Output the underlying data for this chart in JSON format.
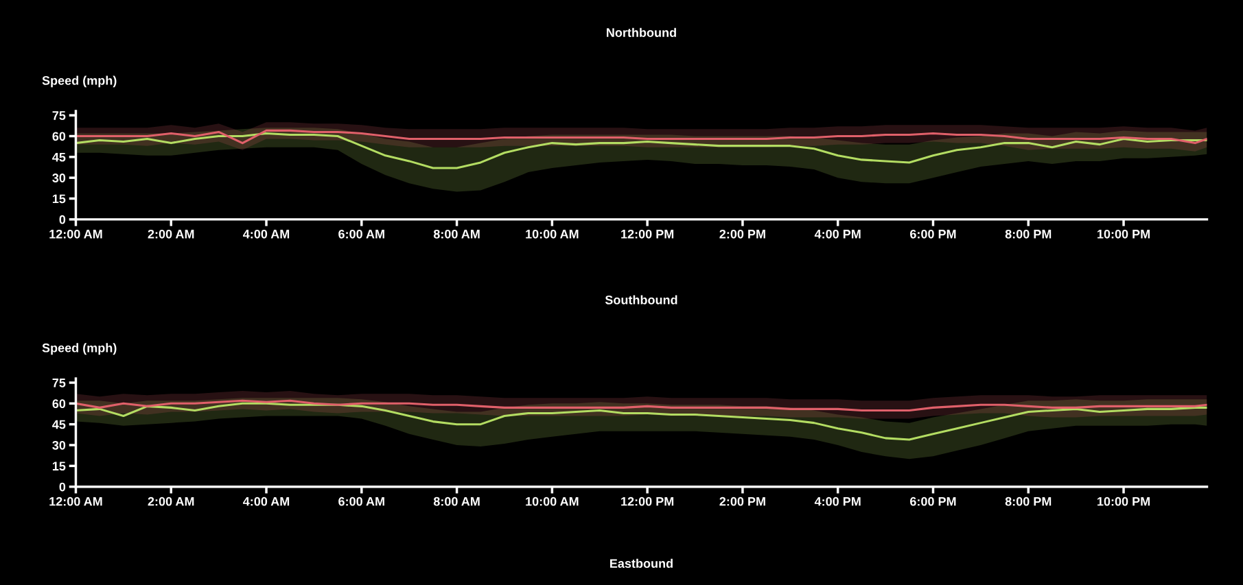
{
  "chart_data": [
    {
      "type": "line",
      "title": "Northbound",
      "ylabel": "Speed (mph)",
      "x": [
        0,
        0.5,
        1,
        1.5,
        2,
        2.5,
        3,
        3.5,
        4,
        4.5,
        5,
        5.5,
        6,
        6.5,
        7,
        7.5,
        8,
        8.5,
        9,
        9.5,
        10,
        10.5,
        11,
        11.5,
        12,
        12.5,
        13,
        13.5,
        14,
        14.5,
        15,
        15.5,
        16,
        16.5,
        17,
        17.5,
        18,
        18.5,
        19,
        19.5,
        20,
        20.5,
        21,
        21.5,
        22,
        22.5,
        23,
        23.5,
        23.75
      ],
      "xlim": [
        0,
        23.75
      ],
      "xticks": [
        {
          "value": 0,
          "label": "12:00 AM"
        },
        {
          "value": 2,
          "label": "2:00 AM"
        },
        {
          "value": 4,
          "label": "4:00 AM"
        },
        {
          "value": 6,
          "label": "6:00 AM"
        },
        {
          "value": 8,
          "label": "8:00 AM"
        },
        {
          "value": 10,
          "label": "10:00 AM"
        },
        {
          "value": 12,
          "label": "12:00 PM"
        },
        {
          "value": 14,
          "label": "2:00 PM"
        },
        {
          "value": 16,
          "label": "4:00 PM"
        },
        {
          "value": 18,
          "label": "6:00 PM"
        },
        {
          "value": 20,
          "label": "8:00 PM"
        },
        {
          "value": 22,
          "label": "10:00 PM"
        }
      ],
      "ylim": [
        0,
        78
      ],
      "yticks": [
        0,
        15,
        30,
        45,
        60,
        75
      ],
      "grid": false,
      "marker": "none",
      "line_style": "solid",
      "series": [
        {
          "color": "#b3dc62",
          "values": [
            55,
            57,
            56,
            58,
            55,
            58,
            60,
            60,
            62,
            61,
            61,
            60,
            53,
            46,
            42,
            37,
            37,
            41,
            48,
            52,
            55,
            54,
            55,
            55,
            56,
            55,
            54,
            53,
            53,
            53,
            53,
            51,
            46,
            43,
            42,
            41,
            46,
            50,
            52,
            55,
            55,
            52,
            56,
            54,
            58,
            56,
            57,
            57,
            57
          ],
          "lower": [
            48,
            48,
            47,
            46,
            46,
            48,
            50,
            51,
            52,
            52,
            52,
            50,
            40,
            32,
            26,
            22,
            20,
            21,
            27,
            34,
            37,
            39,
            41,
            42,
            43,
            42,
            40,
            40,
            39,
            39,
            38,
            36,
            30,
            27,
            26,
            26,
            30,
            34,
            38,
            40,
            42,
            40,
            42,
            42,
            44,
            44,
            45,
            46,
            47
          ],
          "upper": [
            62,
            62,
            62,
            62,
            62,
            63,
            64,
            65,
            66,
            66,
            66,
            65,
            62,
            58,
            56,
            52,
            52,
            55,
            58,
            60,
            61,
            61,
            61,
            61,
            61,
            61,
            60,
            60,
            60,
            60,
            60,
            59,
            57,
            55,
            54,
            54,
            57,
            59,
            60,
            62,
            62,
            60,
            63,
            62,
            64,
            63,
            63,
            63,
            63
          ]
        },
        {
          "color": "#e0606a",
          "values": [
            60,
            60,
            60,
            60,
            62,
            60,
            63,
            55,
            64,
            64,
            63,
            63,
            62,
            60,
            58,
            58,
            58,
            58,
            59,
            59,
            59,
            59,
            59,
            59,
            58,
            58,
            58,
            58,
            58,
            58,
            59,
            59,
            60,
            60,
            61,
            61,
            62,
            61,
            61,
            60,
            58,
            58,
            58,
            58,
            59,
            58,
            58,
            55,
            58
          ],
          "lower": [
            54,
            54,
            54,
            53,
            55,
            54,
            56,
            50,
            58,
            58,
            57,
            57,
            56,
            54,
            52,
            52,
            52,
            52,
            53,
            53,
            53,
            53,
            53,
            53,
            52,
            52,
            52,
            52,
            52,
            52,
            53,
            53,
            54,
            54,
            55,
            55,
            56,
            55,
            55,
            53,
            50,
            51,
            51,
            51,
            52,
            51,
            51,
            49,
            52
          ],
          "upper": [
            66,
            66,
            66,
            66,
            68,
            66,
            69,
            63,
            70,
            70,
            69,
            69,
            68,
            66,
            65,
            65,
            65,
            65,
            66,
            66,
            66,
            66,
            66,
            66,
            65,
            65,
            65,
            65,
            65,
            65,
            66,
            66,
            67,
            67,
            68,
            68,
            68,
            68,
            68,
            67,
            66,
            66,
            66,
            66,
            67,
            66,
            66,
            64,
            66
          ]
        }
      ]
    },
    {
      "type": "line",
      "title": "Southbound",
      "ylabel": "Speed (mph)",
      "x": [
        0,
        0.5,
        1,
        1.5,
        2,
        2.5,
        3,
        3.5,
        4,
        4.5,
        5,
        5.5,
        6,
        6.5,
        7,
        7.5,
        8,
        8.5,
        9,
        9.5,
        10,
        10.5,
        11,
        11.5,
        12,
        12.5,
        13,
        13.5,
        14,
        14.5,
        15,
        15.5,
        16,
        16.5,
        17,
        17.5,
        18,
        18.5,
        19,
        19.5,
        20,
        20.5,
        21,
        21.5,
        22,
        22.5,
        23,
        23.5,
        23.75
      ],
      "xlim": [
        0,
        23.75
      ],
      "xticks": [
        {
          "value": 0,
          "label": "12:00 AM"
        },
        {
          "value": 2,
          "label": "2:00 AM"
        },
        {
          "value": 4,
          "label": "4:00 AM"
        },
        {
          "value": 6,
          "label": "6:00 AM"
        },
        {
          "value": 8,
          "label": "8:00 AM"
        },
        {
          "value": 10,
          "label": "10:00 AM"
        },
        {
          "value": 12,
          "label": "12:00 PM"
        },
        {
          "value": 14,
          "label": "2:00 PM"
        },
        {
          "value": 16,
          "label": "4:00 PM"
        },
        {
          "value": 18,
          "label": "6:00 PM"
        },
        {
          "value": 20,
          "label": "8:00 PM"
        },
        {
          "value": 22,
          "label": "10:00 PM"
        }
      ],
      "ylim": [
        0,
        78
      ],
      "yticks": [
        0,
        15,
        30,
        45,
        60,
        75
      ],
      "grid": false,
      "marker": "none",
      "line_style": "solid",
      "series": [
        {
          "color": "#b3dc62",
          "values": [
            55,
            56,
            51,
            58,
            57,
            55,
            58,
            60,
            60,
            59,
            59,
            59,
            58,
            55,
            51,
            47,
            45,
            45,
            51,
            53,
            53,
            54,
            55,
            53,
            53,
            52,
            52,
            51,
            50,
            49,
            48,
            46,
            42,
            39,
            35,
            34,
            38,
            42,
            46,
            50,
            54,
            55,
            56,
            54,
            55,
            56,
            56,
            57,
            57
          ],
          "lower": [
            47,
            46,
            44,
            45,
            46,
            47,
            49,
            50,
            51,
            51,
            51,
            51,
            49,
            44,
            38,
            34,
            30,
            29,
            31,
            34,
            36,
            38,
            40,
            40,
            40,
            40,
            40,
            39,
            38,
            37,
            36,
            34,
            30,
            25,
            22,
            20,
            22,
            26,
            30,
            35,
            40,
            42,
            44,
            44,
            44,
            44,
            45,
            45,
            44
          ],
          "upper": [
            62,
            62,
            60,
            62,
            62,
            62,
            63,
            64,
            64,
            64,
            64,
            64,
            63,
            61,
            58,
            56,
            54,
            54,
            57,
            59,
            60,
            60,
            61,
            60,
            60,
            59,
            59,
            59,
            58,
            58,
            57,
            55,
            52,
            50,
            47,
            46,
            50,
            53,
            56,
            59,
            62,
            62,
            63,
            62,
            62,
            63,
            63,
            63,
            63
          ]
        },
        {
          "color": "#e0606a",
          "values": [
            60,
            57,
            60,
            58,
            60,
            60,
            61,
            62,
            61,
            62,
            60,
            59,
            60,
            60,
            60,
            59,
            59,
            58,
            57,
            57,
            57,
            57,
            57,
            57,
            58,
            57,
            57,
            57,
            57,
            57,
            56,
            56,
            56,
            55,
            55,
            55,
            57,
            58,
            59,
            59,
            58,
            57,
            57,
            58,
            58,
            58,
            58,
            58,
            59
          ],
          "lower": [
            53,
            51,
            53,
            52,
            54,
            54,
            55,
            56,
            55,
            56,
            54,
            53,
            54,
            54,
            54,
            53,
            53,
            52,
            51,
            51,
            51,
            51,
            51,
            51,
            52,
            51,
            51,
            51,
            51,
            51,
            50,
            50,
            50,
            49,
            49,
            49,
            51,
            52,
            53,
            53,
            51,
            50,
            50,
            51,
            51,
            51,
            51,
            51,
            52
          ],
          "upper": [
            67,
            65,
            67,
            66,
            67,
            67,
            68,
            69,
            68,
            69,
            67,
            66,
            67,
            67,
            67,
            66,
            66,
            65,
            64,
            64,
            64,
            64,
            64,
            64,
            65,
            64,
            64,
            64,
            64,
            64,
            63,
            63,
            63,
            62,
            62,
            62,
            64,
            65,
            66,
            66,
            66,
            65,
            65,
            66,
            66,
            66,
            66,
            66,
            66
          ]
        }
      ]
    },
    {
      "type": "other",
      "title": "Eastbound"
    }
  ]
}
